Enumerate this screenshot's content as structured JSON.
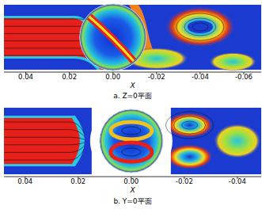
{
  "chart_data": [
    {
      "type": "contour",
      "title": "a. Z=0平面",
      "x_label": "X",
      "xlim": [
        0.05,
        -0.068
      ],
      "xticks": [
        0.04,
        0.02,
        {
          "value": 0,
          "label": "0.00"
        },
        -0.02,
        -0.04,
        -0.06
      ]
    },
    {
      "type": "contour",
      "title": "b. Y=0平面",
      "x_label": "X",
      "xlim": [
        0.048,
        -0.049
      ],
      "xticks": [
        0.04,
        0.02,
        {
          "value": 0,
          "label": "0.00"
        },
        -0.02,
        -0.04
      ]
    }
  ]
}
